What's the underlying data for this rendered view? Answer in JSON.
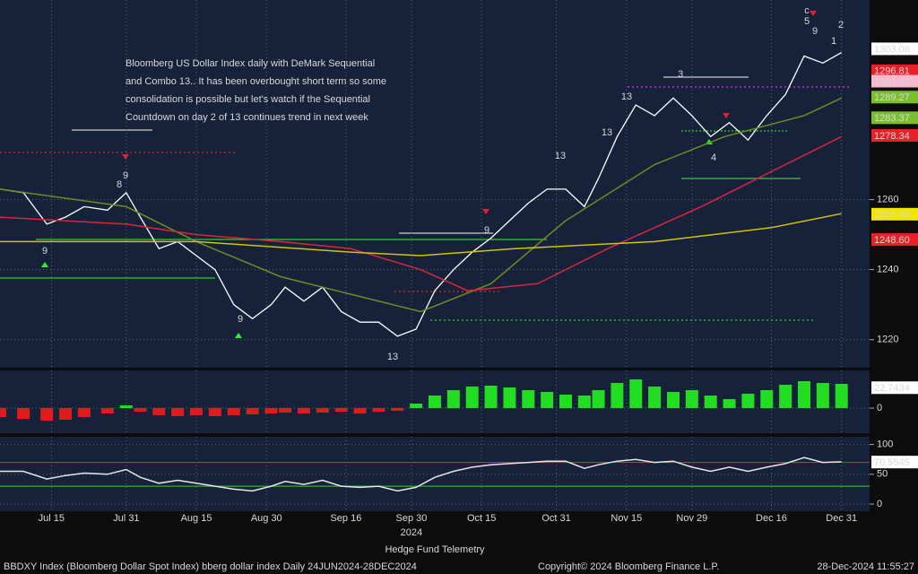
{
  "chart_data": [
    {
      "type": "line",
      "annotation": [
        "Bloomberg US Dollar Index daily with DeMark Sequential",
        "and Combo 13.. It has been overbought short term so some",
        "consolidation is possible but let's watch if the Sequential",
        "Countdown on day 2 of 13 continues trend in next week"
      ],
      "xlim": [
        10,
        196
      ],
      "xticks": [
        {
          "value": 21,
          "label": "Jul 15"
        },
        {
          "value": 37,
          "label": "Jul 31"
        },
        {
          "value": 52,
          "label": "Aug 15"
        },
        {
          "value": 67,
          "label": "Aug 30"
        },
        {
          "value": 84,
          "label": "Sep 16"
        },
        {
          "value": 98,
          "label": "Sep 30"
        },
        {
          "value": 113,
          "label": "Oct 15"
        },
        {
          "value": 129,
          "label": "Oct 31"
        },
        {
          "value": 144,
          "label": "Nov 15"
        },
        {
          "value": 158,
          "label": "Nov 29"
        },
        {
          "value": 175,
          "label": "Dec 16"
        },
        {
          "value": 190,
          "label": "Dec 31"
        }
      ],
      "year_label": "2024",
      "ylim": [
        1212,
        1317
      ],
      "yticks": [
        1220,
        1240,
        1260
      ],
      "grid": true,
      "series": [
        {
          "color": "#ffffff",
          "x": [
            10,
            15,
            20,
            24,
            28,
            33,
            37,
            40,
            44,
            48,
            52,
            56,
            60,
            64,
            68,
            71,
            75,
            79,
            83,
            87,
            91,
            95,
            99,
            103,
            107,
            111,
            115,
            119,
            123,
            127,
            131,
            135,
            138,
            142,
            146,
            150,
            154,
            158,
            162,
            166,
            170,
            174,
            178,
            182,
            186,
            190
          ],
          "values": [
            1263,
            1262,
            1253,
            1255,
            1258,
            1257,
            1262,
            1255,
            1246,
            1248,
            1244,
            1240,
            1230,
            1226,
            1230,
            1235,
            1231,
            1235,
            1228,
            1225,
            1225,
            1221,
            1223,
            1234,
            1240,
            1245,
            1249,
            1254,
            1259,
            1263,
            1263,
            1258,
            1266,
            1278,
            1287,
            1284,
            1289,
            1284,
            1278,
            1282,
            1277,
            1284,
            1290,
            1301,
            1299,
            1302
          ]
        },
        {
          "color": "#6b8e23",
          "x": [
            10,
            37,
            52,
            70,
            85,
            100,
            115,
            131,
            150,
            165,
            182,
            190
          ],
          "values": [
            1263,
            1258,
            1248,
            1238,
            1233,
            1228,
            1236,
            1254,
            1270,
            1278,
            1284,
            1289
          ]
        },
        {
          "color": "#d9263a",
          "x": [
            10,
            37,
            52,
            70,
            85,
            100,
            110,
            125,
            140,
            160,
            178,
            190
          ],
          "values": [
            1255,
            1253,
            1250,
            1248,
            1246,
            1240,
            1234,
            1236,
            1246,
            1258,
            1270,
            1278
          ]
        },
        {
          "color": "#d4c400",
          "x": [
            10,
            52,
            85,
            100,
            120,
            150,
            175,
            190
          ],
          "values": [
            1248,
            1248,
            1245,
            1244,
            1246,
            1248,
            1252,
            1256
          ]
        }
      ],
      "last_labels": [
        {
          "value": 1303.06,
          "label": "1303.06",
          "color": "#ffffff"
        },
        {
          "value": 1296.81,
          "label": "1296.81",
          "color": "#e8202a"
        },
        {
          "value": 1293.82,
          "label": "1293.82",
          "color": "#f5b8cc"
        },
        {
          "value": 1289.27,
          "label": "1289.27",
          "color": "#7cbf2e"
        },
        {
          "value": 1283.37,
          "label": "1283.37",
          "color": "#7cbf2e"
        },
        {
          "value": 1278.34,
          "label": "1278.34",
          "color": "#e8202a"
        },
        {
          "value": 1255.84,
          "label": "1255.84",
          "color": "#f2e600"
        },
        {
          "value": 1248.6,
          "label": "1248.60",
          "color": "#e8202a"
        }
      ],
      "markers": [
        {
          "text": "9",
          "color": "#33ee33"
        },
        {
          "text": "8",
          "color": "#33ee33"
        },
        {
          "text": "9",
          "color": "#33ee33"
        },
        {
          "text": "13",
          "color": "#e08a1e"
        },
        {
          "text": "9",
          "color": "#33ee33"
        },
        {
          "text": "9",
          "color": "#33ee33"
        },
        {
          "text": "13",
          "color": "#d43bd4"
        },
        {
          "text": "13",
          "color": "#e08a1e"
        },
        {
          "text": "13",
          "color": "#d43bd4"
        },
        {
          "text": "9",
          "color": "#33ee33"
        },
        {
          "text": "c",
          "color": "#e0b000"
        },
        {
          "text": "2",
          "color": "#e8202a"
        },
        {
          "text": "1",
          "color": "#e8202a"
        },
        {
          "text": "3",
          "color": "#33cccc"
        },
        {
          "text": "4",
          "color": "#33cccc"
        },
        {
          "text": "5",
          "color": "#33cccc"
        }
      ]
    },
    {
      "type": "bar",
      "xlim": [
        10,
        196
      ],
      "ylim": [
        -28,
        42
      ],
      "yticks": [
        0
      ],
      "x": [
        10,
        15,
        20,
        24,
        28,
        33,
        37,
        40,
        44,
        48,
        52,
        56,
        60,
        64,
        68,
        71,
        75,
        79,
        83,
        87,
        91,
        95,
        99,
        103,
        107,
        111,
        115,
        119,
        123,
        127,
        131,
        135,
        138,
        142,
        146,
        150,
        154,
        158,
        162,
        166,
        170,
        174,
        178,
        182,
        186,
        190
      ],
      "values": [
        -10,
        -12,
        -14,
        -13,
        -10,
        -6,
        3,
        -4,
        -8,
        -9,
        -8,
        -9,
        -8,
        -7,
        -6,
        -5,
        -6,
        -5,
        -4,
        -6,
        -4,
        -3,
        5,
        14,
        20,
        24,
        25,
        23,
        20,
        18,
        15,
        14,
        20,
        28,
        32,
        24,
        18,
        20,
        14,
        10,
        16,
        20,
        26,
        30,
        28,
        27
      ],
      "positive_color": "#22dd22",
      "negative_color": "#e01b1b",
      "last_labels": [
        {
          "value": 22.7434,
          "label": "22.7434",
          "color": "#ffffff"
        }
      ]
    },
    {
      "type": "line",
      "xlim": [
        10,
        196
      ],
      "ylim": [
        -12,
        113
      ],
      "yticks": [
        0,
        50,
        100
      ],
      "hlines": [
        {
          "value": 70,
          "color": "#d9263a"
        },
        {
          "value": 30,
          "color": "#2fae2f"
        }
      ],
      "series": [
        {
          "color": "#e6e6e6",
          "x": [
            10,
            15,
            20,
            24,
            28,
            33,
            37,
            40,
            44,
            48,
            52,
            56,
            60,
            64,
            68,
            71,
            75,
            79,
            83,
            87,
            91,
            95,
            99,
            103,
            107,
            111,
            115,
            119,
            123,
            127,
            131,
            135,
            138,
            142,
            146,
            150,
            154,
            158,
            162,
            166,
            170,
            174,
            178,
            182,
            186,
            190
          ],
          "values": [
            55,
            55,
            42,
            48,
            52,
            50,
            58,
            45,
            35,
            40,
            35,
            30,
            25,
            22,
            30,
            38,
            33,
            40,
            30,
            28,
            30,
            22,
            28,
            45,
            55,
            62,
            66,
            68,
            70,
            72,
            72,
            60,
            66,
            72,
            75,
            70,
            72,
            62,
            55,
            62,
            55,
            62,
            68,
            78,
            70,
            71
          ]
        }
      ],
      "last_labels": [
        {
          "value": 70.5545,
          "label": "70.5545",
          "color": "#ffffff"
        }
      ]
    }
  ],
  "footer": {
    "brand": "Hedge Fund Telemetry",
    "security": "BBDXY Index (Bloomberg Dollar Spot Index) bberg dollar index  Daily 24JUN2024-28DEC2024",
    "copyright": "Copyright© 2024 Bloomberg Finance L.P.",
    "timestamp": "28-Dec-2024 11:55:27"
  }
}
